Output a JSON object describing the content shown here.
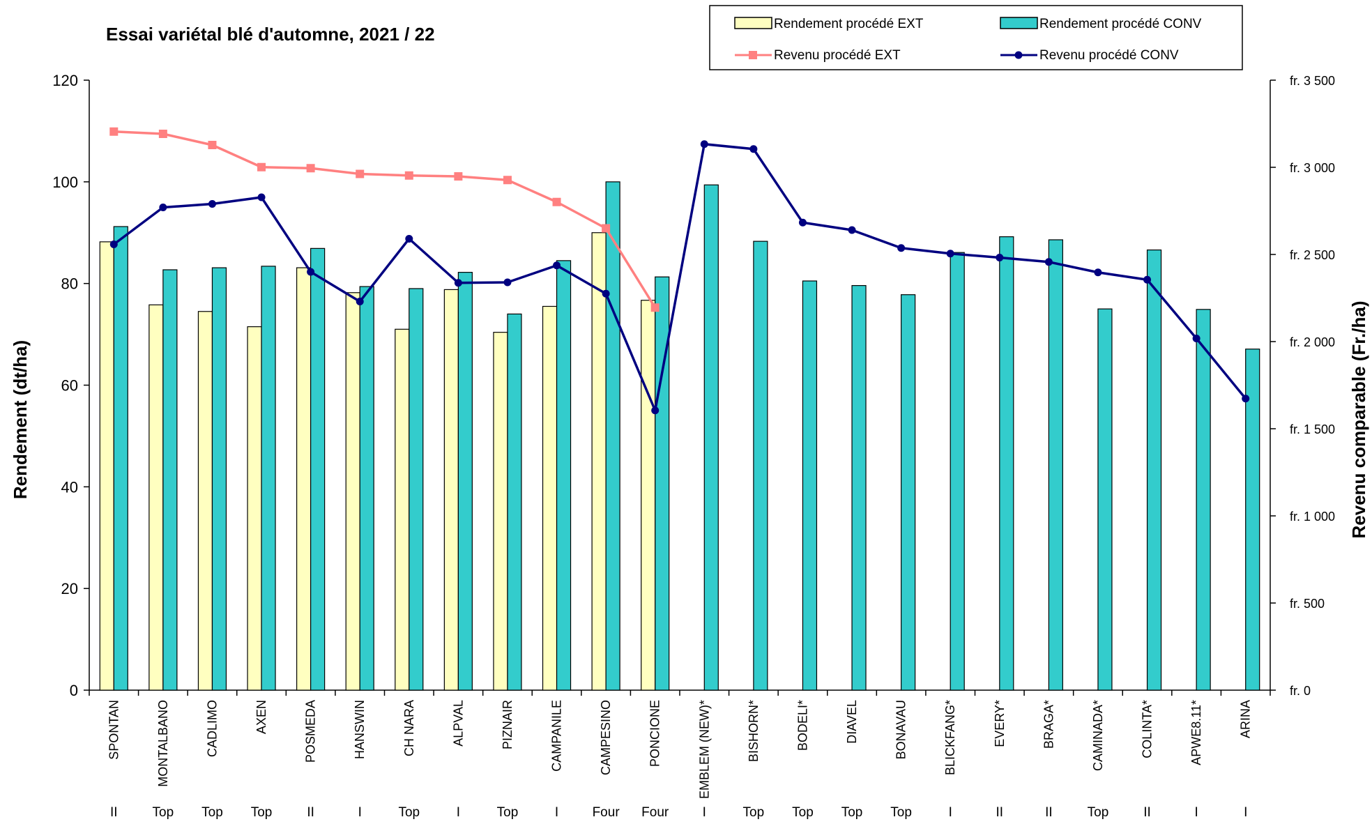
{
  "chart_data": {
    "type": "bar",
    "title": "Essai variétal blé d'automne, 2021 / 22",
    "ylabel": "Rendement (dt/ha)",
    "y2label": "Revenu comparable (Fr./ha)",
    "ylim": [
      0,
      120
    ],
    "yticks": [
      0,
      20,
      40,
      60,
      80,
      100,
      120
    ],
    "y2lim": [
      0,
      3500
    ],
    "y2ticks": [
      "fr. 0",
      "fr.  500",
      "fr. 1 000",
      "fr. 1 500",
      "fr. 2 000",
      "fr. 2 500",
      "fr. 3 000",
      "fr. 3 500"
    ],
    "legend_position": "top-right",
    "grid": false,
    "colors": {
      "bar_ext": "#FFFFC0",
      "bar_conv": "#33CCCC",
      "line_ext": "#FF8080",
      "line_conv": "#000080"
    },
    "categories": [
      "SPONTAN",
      "MONTALBANO",
      "CADLIMO",
      "AXEN",
      "POSMEDA",
      "HANSWIN",
      "CH NARA",
      "ALPVAL",
      "PIZNAIR",
      "CAMPANILE",
      "CAMPESINO",
      "PONCIONE",
      "EMBLEM (NEW)*",
      "BISHORN*",
      "BODELI*",
      "DIAVEL",
      "BONAVAU",
      "BLICKFANG*",
      "EVERY*",
      "BRAGA*",
      "CAMINADA*",
      "COLINTA*",
      "APWE8.11*",
      "ARINA"
    ],
    "classes": [
      "II",
      "Top",
      "Top",
      "Top",
      "II",
      "I",
      "Top",
      "I",
      "Top",
      "I",
      "Four",
      "Four",
      "I",
      "Top",
      "Top",
      "Top",
      "Top",
      "I",
      "II",
      "II",
      "Top",
      "II",
      "I",
      "I"
    ],
    "series": [
      {
        "name": "Rendement procédé EXT",
        "kind": "bar",
        "axis": "left",
        "values": [
          88.2,
          75.8,
          74.5,
          71.5,
          83.1,
          78.2,
          71.0,
          78.8,
          70.4,
          75.5,
          90.0,
          76.7,
          null,
          null,
          null,
          null,
          null,
          null,
          null,
          null,
          null,
          null,
          null,
          null
        ]
      },
      {
        "name": "Rendement procédé CONV",
        "kind": "bar",
        "axis": "left",
        "values": [
          91.2,
          82.7,
          83.1,
          83.4,
          86.9,
          79.4,
          79.0,
          82.2,
          74.0,
          84.5,
          100.0,
          81.3,
          99.4,
          88.3,
          80.5,
          79.6,
          77.8,
          86.1,
          89.2,
          88.6,
          75.0,
          86.6,
          74.9,
          67.1
        ]
      },
      {
        "name": "Revenu procédé EXT",
        "kind": "line",
        "axis": "right",
        "values": [
          3205,
          3192,
          3128,
          3001,
          2995,
          2962,
          2953,
          2948,
          2927,
          2801,
          2650,
          2195,
          null,
          null,
          null,
          null,
          null,
          null,
          null,
          null,
          null,
          null,
          null,
          null
        ]
      },
      {
        "name": "Revenu procédé CONV",
        "kind": "line",
        "axis": "right",
        "values": [
          2558,
          2770,
          2790,
          2828,
          2400,
          2230,
          2590,
          2337,
          2340,
          2437,
          2275,
          1605,
          3133,
          3105,
          2683,
          2640,
          2537,
          2505,
          2482,
          2457,
          2397,
          2355,
          2018,
          1673
        ]
      }
    ]
  }
}
